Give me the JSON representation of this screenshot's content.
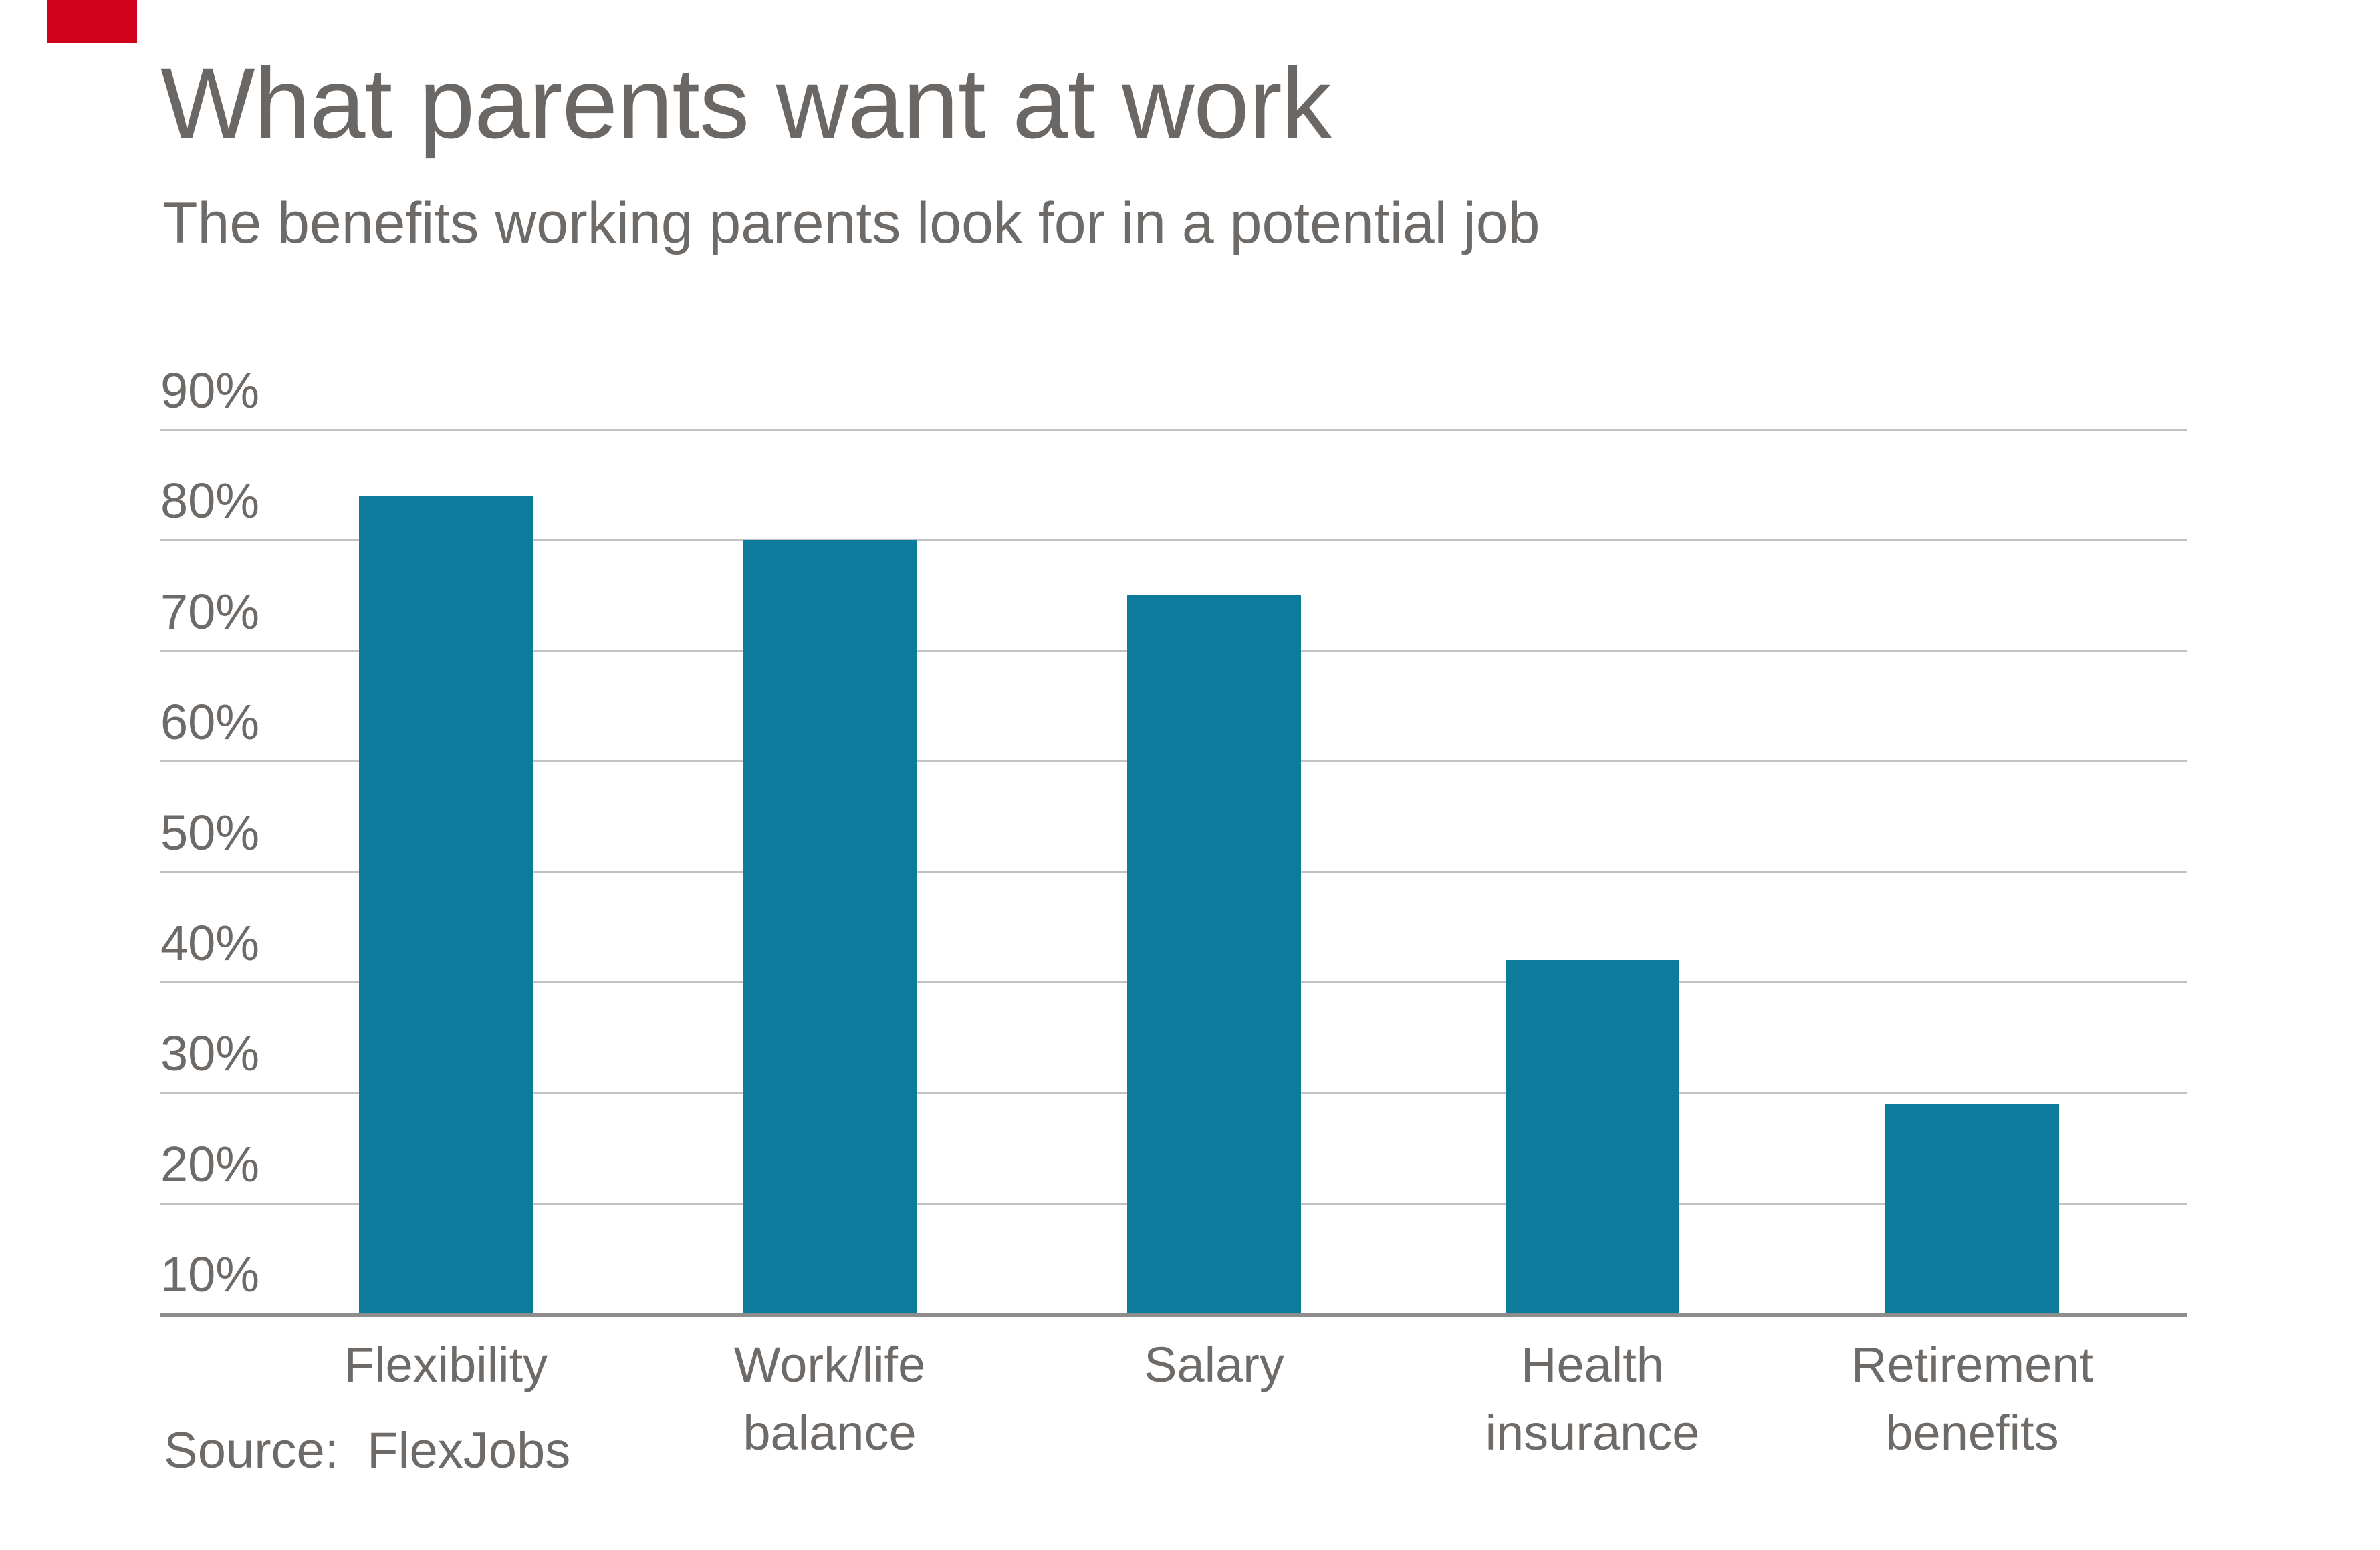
{
  "brand": {
    "accent_color": "#d0021b"
  },
  "chart_data": {
    "type": "bar",
    "title": "What parents want at work",
    "subtitle": "The benefits working parents look for in a potential job",
    "source": "Source:  FlexJobs",
    "categories": [
      "Flexibility",
      "Work/life balance",
      "Salary",
      "Health insurance",
      "Retirement benefits"
    ],
    "values": [
      84,
      80,
      75,
      42,
      29
    ],
    "unit": "%",
    "bar_color": "#0d7b9b",
    "y_ticks": [
      90,
      80,
      70,
      60,
      50,
      40,
      30,
      20,
      10
    ],
    "ylim": [
      10,
      90
    ],
    "xlabel": "",
    "ylabel": "",
    "grid": true,
    "legend": "none",
    "gridline_color": "#c2c2c2",
    "baseline_color": "#8d8d8d",
    "text_color": "#6e6a67"
  }
}
